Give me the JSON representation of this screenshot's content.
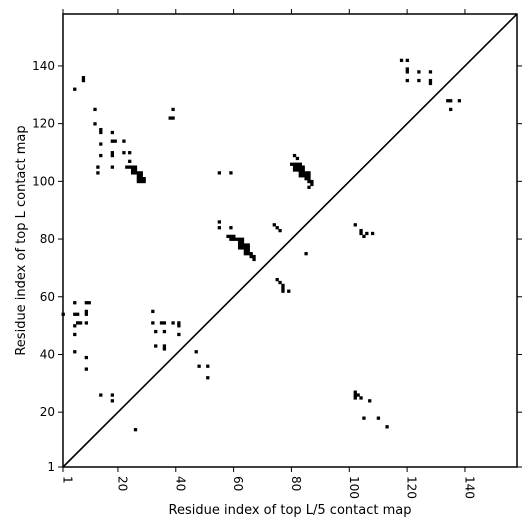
{
  "chart_data": {
    "type": "heatmap",
    "title": "",
    "xlabel": "Residue index of top L/5 contact map",
    "ylabel": "Residue index of top L contact map",
    "xlim": [
      1,
      158
    ],
    "ylim": [
      1,
      158
    ],
    "x_ticks": [
      1,
      20,
      40,
      60,
      80,
      100,
      120,
      140
    ],
    "y_ticks": [
      1,
      20,
      40,
      60,
      80,
      100,
      120,
      140
    ],
    "x_tick_labels": [
      "1",
      "20",
      "40",
      "60",
      "80",
      "100",
      "120",
      "140"
    ],
    "y_tick_labels": [
      "1",
      "20",
      "40",
      "60",
      "80",
      "100",
      "120",
      "140"
    ],
    "diagonal": true,
    "marker_color": "#000000",
    "points": [
      [
        5,
        132
      ],
      [
        8,
        135
      ],
      [
        8,
        136
      ],
      [
        12,
        125
      ],
      [
        12,
        120
      ],
      [
        14,
        118
      ],
      [
        14,
        117
      ],
      [
        14,
        113
      ],
      [
        14,
        109
      ],
      [
        13,
        105
      ],
      [
        13,
        103
      ],
      [
        18,
        117
      ],
      [
        18,
        114
      ],
      [
        19,
        114
      ],
      [
        18,
        110
      ],
      [
        18,
        109
      ],
      [
        18,
        105
      ],
      [
        22,
        114
      ],
      [
        22,
        110
      ],
      [
        24,
        110
      ],
      [
        24,
        107
      ],
      [
        23,
        105
      ],
      [
        24,
        105
      ],
      [
        25,
        105
      ],
      [
        26,
        105
      ],
      [
        25,
        104
      ],
      [
        26,
        104
      ],
      [
        25,
        103
      ],
      [
        26,
        103
      ],
      [
        27,
        103
      ],
      [
        28,
        103
      ],
      [
        27,
        102
      ],
      [
        28,
        102
      ],
      [
        27,
        101
      ],
      [
        28,
        101
      ],
      [
        29,
        101
      ],
      [
        27,
        100
      ],
      [
        28,
        100
      ],
      [
        29,
        100
      ],
      [
        38,
        122
      ],
      [
        39,
        122
      ],
      [
        39,
        125
      ],
      [
        55,
        103
      ],
      [
        59,
        103
      ],
      [
        55,
        86
      ],
      [
        55,
        84
      ],
      [
        59,
        84
      ],
      [
        58,
        81
      ],
      [
        59,
        81
      ],
      [
        60,
        81
      ],
      [
        59,
        80
      ],
      [
        60,
        80
      ],
      [
        61,
        80
      ],
      [
        62,
        80
      ],
      [
        63,
        80
      ],
      [
        62,
        79
      ],
      [
        63,
        79
      ],
      [
        62,
        78
      ],
      [
        63,
        78
      ],
      [
        64,
        78
      ],
      [
        65,
        78
      ],
      [
        62,
        77
      ],
      [
        63,
        77
      ],
      [
        64,
        77
      ],
      [
        65,
        77
      ],
      [
        64,
        76
      ],
      [
        65,
        76
      ],
      [
        64,
        75
      ],
      [
        65,
        75
      ],
      [
        66,
        75
      ],
      [
        66,
        74
      ],
      [
        67,
        74
      ],
      [
        67,
        73
      ],
      [
        74,
        85
      ],
      [
        75,
        84
      ],
      [
        76,
        83
      ],
      [
        75,
        66
      ],
      [
        76,
        65
      ],
      [
        77,
        64
      ],
      [
        77,
        63
      ],
      [
        77,
        62
      ],
      [
        79,
        62
      ],
      [
        85,
        75
      ],
      [
        81,
        109
      ],
      [
        82,
        108
      ],
      [
        80,
        106
      ],
      [
        81,
        106
      ],
      [
        82,
        106
      ],
      [
        83,
        106
      ],
      [
        81,
        105
      ],
      [
        82,
        105
      ],
      [
        83,
        105
      ],
      [
        84,
        105
      ],
      [
        81,
        104
      ],
      [
        82,
        104
      ],
      [
        83,
        104
      ],
      [
        84,
        104
      ],
      [
        83,
        103
      ],
      [
        84,
        103
      ],
      [
        85,
        103
      ],
      [
        86,
        103
      ],
      [
        83,
        102
      ],
      [
        84,
        102
      ],
      [
        85,
        102
      ],
      [
        86,
        102
      ],
      [
        85,
        101
      ],
      [
        86,
        101
      ],
      [
        86,
        100
      ],
      [
        87,
        100
      ],
      [
        87,
        99
      ],
      [
        86,
        98
      ],
      [
        102,
        85
      ],
      [
        104,
        83
      ],
      [
        104,
        82
      ],
      [
        105,
        81
      ],
      [
        106,
        82
      ],
      [
        108,
        82
      ],
      [
        102,
        27
      ],
      [
        102,
        26
      ],
      [
        103,
        26
      ],
      [
        102,
        25
      ],
      [
        104,
        25
      ],
      [
        107,
        24
      ],
      [
        105,
        18
      ],
      [
        110,
        18
      ],
      [
        113,
        15
      ],
      [
        118,
        142
      ],
      [
        120,
        142
      ],
      [
        120,
        139
      ],
      [
        120,
        138
      ],
      [
        124,
        138
      ],
      [
        128,
        138
      ],
      [
        120,
        135
      ],
      [
        124,
        135
      ],
      [
        128,
        135
      ],
      [
        128,
        134
      ],
      [
        134,
        128
      ],
      [
        135,
        128
      ],
      [
        138,
        128
      ],
      [
        135,
        125
      ],
      [
        1,
        54
      ],
      [
        5,
        58
      ],
      [
        5,
        54
      ],
      [
        6,
        54
      ],
      [
        6,
        51
      ],
      [
        7,
        51
      ],
      [
        5,
        50
      ],
      [
        5,
        47
      ],
      [
        5,
        41
      ],
      [
        9,
        58
      ],
      [
        10,
        58
      ],
      [
        9,
        55
      ],
      [
        9,
        54
      ],
      [
        9,
        51
      ],
      [
        9,
        39
      ],
      [
        9,
        35
      ],
      [
        14,
        26
      ],
      [
        18,
        26
      ],
      [
        18,
        24
      ],
      [
        26,
        14
      ],
      [
        32,
        55
      ],
      [
        32,
        51
      ],
      [
        33,
        48
      ],
      [
        35,
        51
      ],
      [
        36,
        51
      ],
      [
        36,
        48
      ],
      [
        36,
        43
      ],
      [
        36,
        42
      ],
      [
        33,
        43
      ],
      [
        39,
        51
      ],
      [
        41,
        51
      ],
      [
        41,
        50
      ],
      [
        41,
        47
      ],
      [
        47,
        41
      ],
      [
        48,
        36
      ],
      [
        51,
        36
      ],
      [
        51,
        32
      ]
    ]
  }
}
